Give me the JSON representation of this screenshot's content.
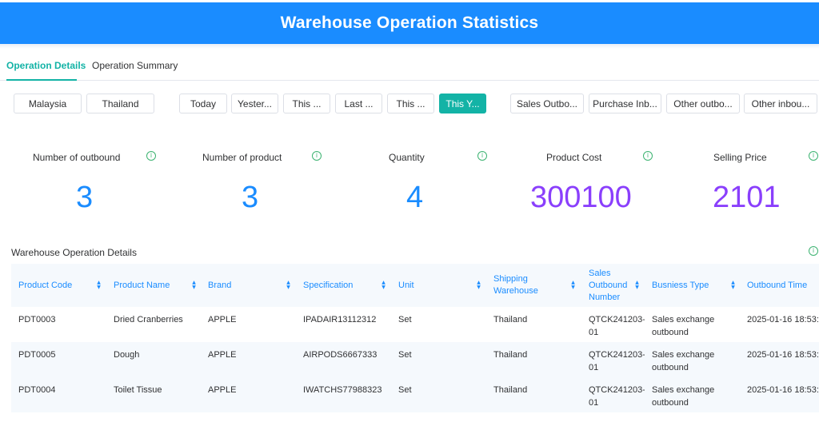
{
  "header": {
    "title": "Warehouse Operation Statistics"
  },
  "tabs": [
    {
      "label": "Operation Details",
      "active": true
    },
    {
      "label": "Operation Summary",
      "active": false
    }
  ],
  "filters": {
    "countries": [
      "Malaysia",
      "Thailand"
    ],
    "periods": [
      "Today",
      "Yester...",
      "This ...",
      "Last ...",
      "This ...",
      "This Y..."
    ],
    "active_period": "This Y...",
    "types": [
      "Sales Outbo...",
      "Purchase Inb...",
      "Other outbo...",
      "Other inbou..."
    ]
  },
  "stats": [
    {
      "label": "Number of outbound",
      "value": "3",
      "color": "#1a8cff"
    },
    {
      "label": "Number of product",
      "value": "3",
      "color": "#1a8cff"
    },
    {
      "label": "Quantity",
      "value": "4",
      "color": "#1a8cff"
    },
    {
      "label": "Product Cost",
      "value": "300100",
      "color": "#8a3ffc"
    },
    {
      "label": "Selling Price",
      "value": "2101",
      "color": "#8a3ffc"
    }
  ],
  "icons": {
    "info": "info-icon",
    "sort": "sort-icon"
  },
  "table": {
    "title": "Warehouse Operation Details",
    "columns": [
      "Product Code",
      "Product Name",
      "Brand",
      "Specification",
      "Unit",
      "Shipping Warehouse",
      "Sales Outbound Number",
      "Busniess Type",
      "Outbound Time"
    ],
    "rows": [
      [
        "PDT0003",
        "Dried Cranberries",
        "APPLE",
        "IPADAIR13112312",
        "Set",
        "Thailand",
        "QTCK241203-01",
        "Sales exchange outbound",
        "2025-01-16 18:53:"
      ],
      [
        "PDT0005",
        "Dough",
        "APPLE",
        "AIRPODS6667333",
        "Set",
        "Thailand",
        "QTCK241203-01",
        "Sales exchange outbound",
        "2025-01-16 18:53:"
      ],
      [
        "PDT0004",
        "Toilet Tissue",
        "APPLE",
        "IWATCHS77988323",
        "Set",
        "Thailand",
        "QTCK241203-01",
        "Sales exchange outbound",
        "2025-01-16 18:53:"
      ]
    ]
  }
}
